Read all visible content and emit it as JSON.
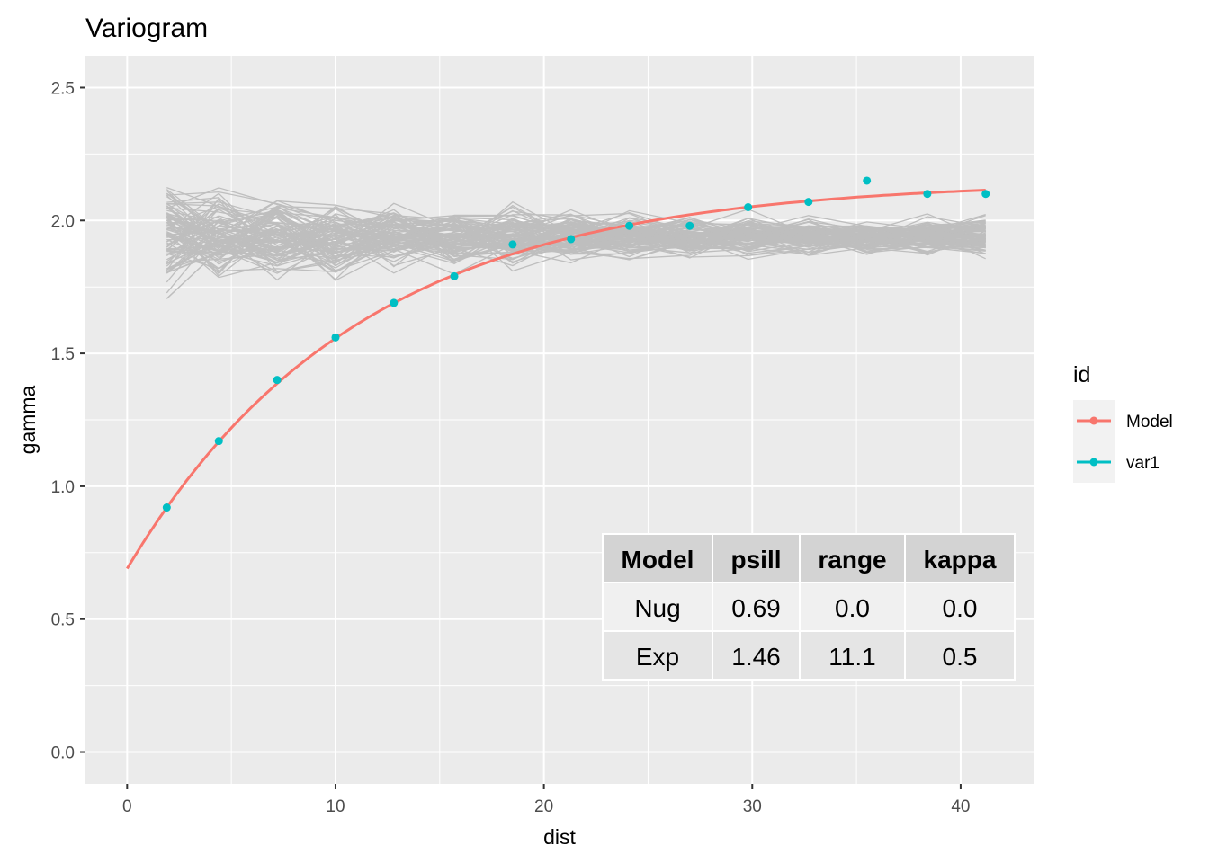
{
  "chart_data": {
    "type": "line",
    "title": "Variogram",
    "xlabel": "dist",
    "ylabel": "gamma",
    "xlim": [
      -2,
      43.5
    ],
    "ylim": [
      -0.12,
      2.62
    ],
    "x_ticks": [
      0,
      10,
      20,
      30,
      40
    ],
    "x_tick_labels": [
      "0",
      "10",
      "20",
      "30",
      "40"
    ],
    "y_ticks": [
      0.0,
      0.5,
      1.0,
      1.5,
      2.0,
      2.5
    ],
    "y_tick_labels": [
      "0.0",
      "0.5",
      "1.0",
      "1.5",
      "2.0",
      "2.5"
    ],
    "grid": true,
    "legend": {
      "title": "id",
      "position": "right",
      "entries": [
        {
          "label": "Model",
          "color": "#F8766D"
        },
        {
          "label": "var1",
          "color": "#00BFC4"
        }
      ]
    },
    "series": [
      {
        "name": "var1",
        "kind": "points",
        "color": "#00BFC4",
        "x": [
          1.9,
          4.4,
          7.2,
          10.0,
          12.8,
          15.7,
          18.5,
          21.3,
          24.1,
          27.0,
          29.8,
          32.7,
          35.5,
          38.4,
          41.2
        ],
        "y": [
          0.92,
          1.17,
          1.4,
          1.56,
          1.69,
          1.79,
          1.91,
          1.93,
          1.98,
          1.98,
          2.05,
          2.07,
          2.15,
          2.1,
          2.1
        ]
      },
      {
        "name": "Model",
        "kind": "model",
        "color": "#F8766D",
        "model": "Nug(0.69) + Exp(psill 1.46, range 11.1)",
        "x_range": [
          0,
          41.2
        ]
      }
    ],
    "envelope": {
      "color": "#BEBEBE",
      "count": 100,
      "x": [
        1.9,
        4.4,
        7.2,
        10.0,
        12.8,
        15.7,
        18.5,
        21.3,
        24.1,
        27.0,
        29.8,
        32.7,
        35.5,
        38.4,
        41.2
      ],
      "center": 1.94,
      "spread_start": 0.16,
      "spread_end": 0.07
    },
    "model_table": {
      "headers": [
        "Model",
        "psill",
        "range",
        "kappa"
      ],
      "rows": [
        [
          "Nug",
          "0.69",
          "0.0",
          "0.0"
        ],
        [
          "Exp",
          "1.46",
          "11.1",
          "0.5"
        ]
      ]
    }
  }
}
